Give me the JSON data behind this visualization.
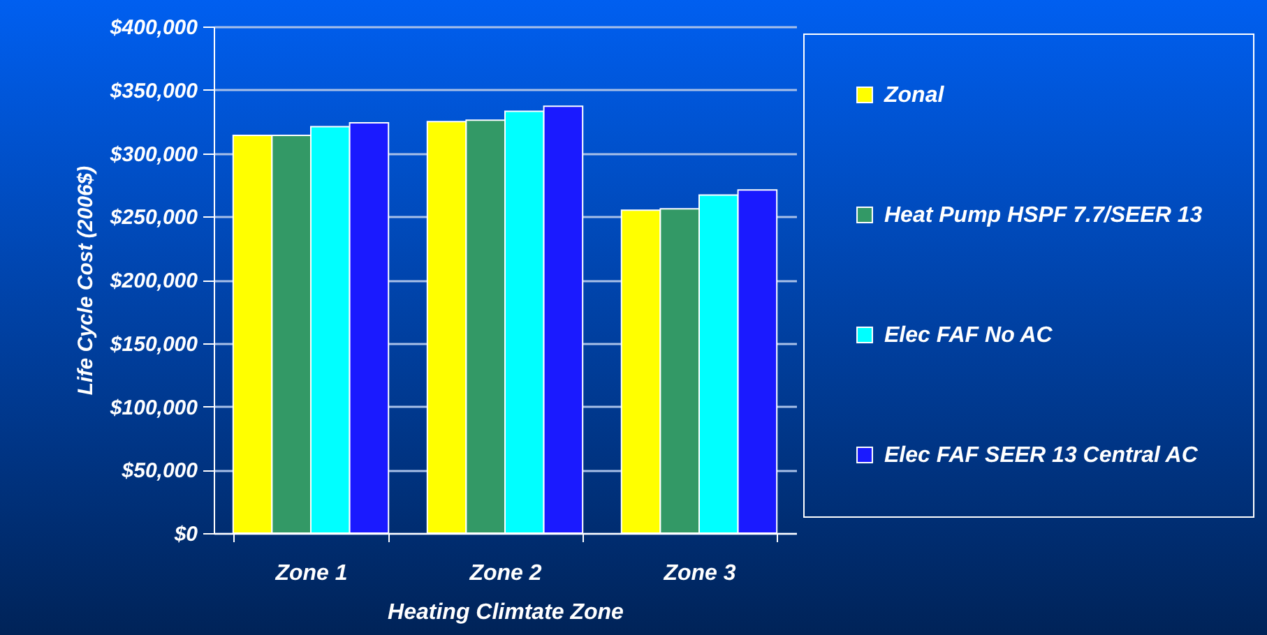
{
  "chart_data": {
    "type": "bar",
    "xlabel": "Heating Climtate Zone",
    "ylabel": "Life Cycle Cost (2006$)",
    "categories": [
      "Zone 1",
      "Zone 2",
      "Zone 3"
    ],
    "series": [
      {
        "name": "Zonal",
        "color": "#ffff00",
        "values": [
          314000,
          325000,
          255000
        ]
      },
      {
        "name": "Heat Pump HSPF 7.7/SEER 13",
        "color": "#339966",
        "values": [
          314000,
          326000,
          256000
        ]
      },
      {
        "name": "Elec FAF No AC",
        "color": "#00ffff",
        "values": [
          321000,
          333000,
          267000
        ]
      },
      {
        "name": "Elec FAF SEER 13 Central AC",
        "color": "#1a1aff",
        "values": [
          324000,
          337000,
          271000
        ]
      }
    ],
    "ylim": [
      0,
      400000
    ],
    "yticks": [
      {
        "value": 0,
        "label": "$0"
      },
      {
        "value": 50000,
        "label": "$50,000"
      },
      {
        "value": 100000,
        "label": "$100,000"
      },
      {
        "value": 150000,
        "label": "$150,000"
      },
      {
        "value": 200000,
        "label": "$200,000"
      },
      {
        "value": 250000,
        "label": "$250,000"
      },
      {
        "value": 300000,
        "label": "$300,000"
      },
      {
        "value": 350000,
        "label": "$350,000"
      },
      {
        "value": 400000,
        "label": "$400,000"
      }
    ],
    "grid": "y",
    "legend": "right"
  }
}
